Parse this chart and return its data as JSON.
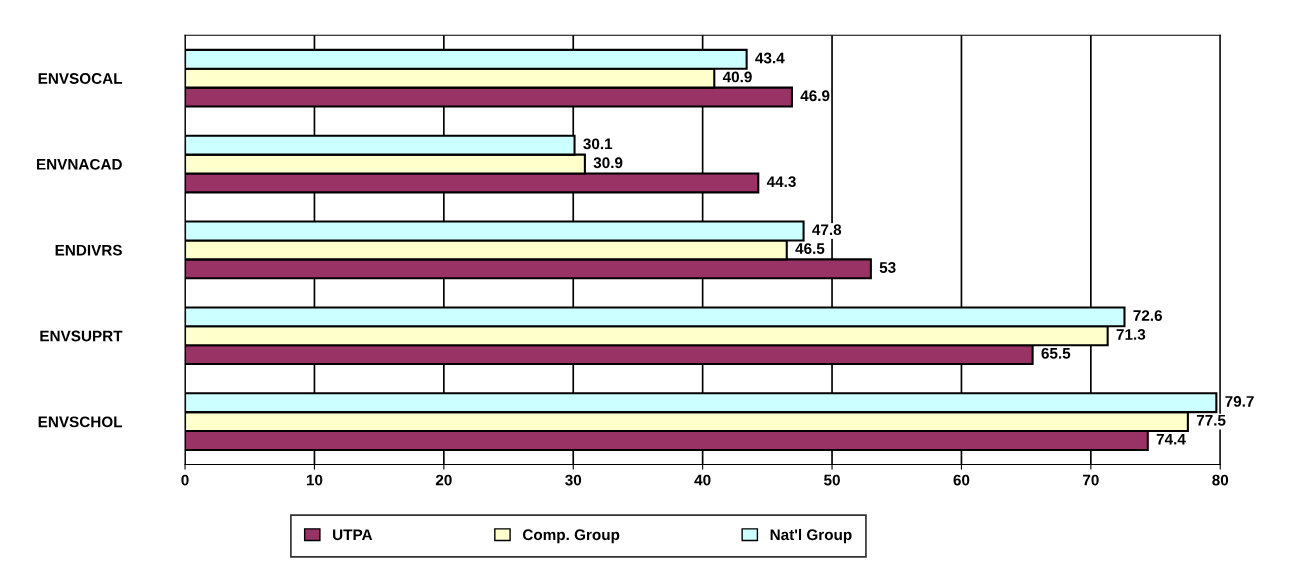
{
  "chart_data": {
    "type": "bar",
    "orientation": "horizontal",
    "categories": [
      "ENVSOCAL",
      "ENVNACAD",
      "ENDIVRS",
      "ENVSUPRT",
      "ENVSCHOL"
    ],
    "series": [
      {
        "name": "UTPA",
        "color": "#993366",
        "values": [
          46.9,
          44.3,
          53,
          65.5,
          74.4
        ]
      },
      {
        "name": "Comp. Group",
        "color": "#ffffcc",
        "values": [
          40.9,
          30.9,
          46.5,
          71.3,
          77.5
        ]
      },
      {
        "name": "Nat'l Group",
        "color": "#ccffff",
        "values": [
          43.4,
          30.1,
          47.8,
          72.6,
          79.7
        ]
      }
    ],
    "xlim": [
      0,
      80
    ],
    "xticks": [
      0,
      10,
      20,
      30,
      40,
      50,
      60,
      70,
      80
    ],
    "grid": "x",
    "legend": "bottom",
    "data_labels": true
  }
}
